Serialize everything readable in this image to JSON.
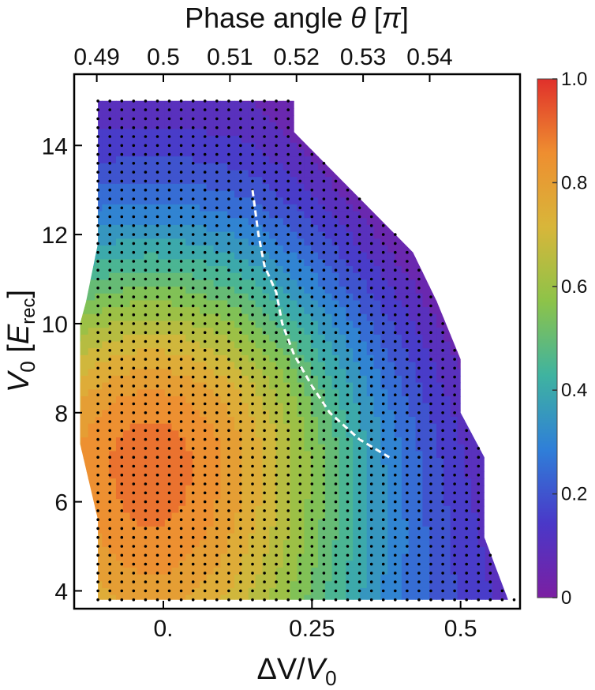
{
  "chart_data": {
    "type": "heatmap",
    "subtype": "filled-contour",
    "title": "",
    "x_bottom_label_parts": [
      "ΔV/",
      "V",
      "0"
    ],
    "x_top_label_parts": [
      "Phase angle ",
      "θ",
      " [",
      "π",
      "]"
    ],
    "y_label_parts": [
      "V",
      "0",
      " [",
      "E",
      "rec",
      "]"
    ],
    "x_ticks": [
      0,
      0.25,
      0.5
    ],
    "x_tick_labels": [
      "0.",
      "0.25",
      "0.5"
    ],
    "x_top_ticks": [
      0.49,
      0.5,
      0.51,
      0.52,
      0.53,
      0.54
    ],
    "x_top_tick_labels": [
      "0.49",
      "0.5",
      "0.51",
      "0.52",
      "0.53",
      "0.54"
    ],
    "y_ticks": [
      4,
      6,
      8,
      10,
      12,
      14
    ],
    "y_tick_labels": [
      "4",
      "6",
      "8",
      "10",
      "12",
      "14"
    ],
    "xlim": [
      -0.15,
      0.6
    ],
    "ylim": [
      3.6,
      15.6
    ],
    "colorbar": {
      "range": [
        0,
        1
      ],
      "ticks": [
        0,
        0.2,
        0.4,
        0.6,
        0.8,
        1.0
      ],
      "tick_labels": [
        "0",
        "0.2",
        "0.4",
        "0.6",
        "0.8",
        "1.0"
      ],
      "colors": [
        "#7b1fa2",
        "#4a38c8",
        "#2f7fd8",
        "#3fb3a0",
        "#8dc349",
        "#d8b63a",
        "#ee8e30",
        "#e0302b"
      ]
    },
    "domain_polygon": [
      [
        -0.11,
        3.8
      ],
      [
        -0.11,
        11.8
      ],
      [
        -0.13,
        10.5
      ],
      [
        -0.14,
        10.0
      ],
      [
        -0.14,
        7.3
      ],
      [
        -0.11,
        5.6
      ],
      [
        -0.11,
        15.0
      ],
      [
        0.22,
        15.0
      ],
      [
        0.22,
        14.3
      ],
      [
        0.42,
        11.6
      ],
      [
        0.46,
        10.5
      ],
      [
        0.5,
        9.2
      ],
      [
        0.5,
        8.0
      ],
      [
        0.54,
        7.0
      ],
      [
        0.54,
        5.2
      ],
      [
        0.58,
        3.8
      ]
    ],
    "value_model": {
      "description": "value peaks near x=0, V0~7 and decreases toward large dV/V0 and high V0",
      "peak_center": [
        -0.02,
        6.9
      ],
      "peak_value": 0.9
    },
    "dashed_line": {
      "style": "white-dashed",
      "points": [
        [
          0.15,
          13.0
        ],
        [
          0.16,
          12.0
        ],
        [
          0.17,
          11.3
        ],
        [
          0.19,
          10.7
        ],
        [
          0.2,
          10.0
        ],
        [
          0.22,
          9.3
        ],
        [
          0.25,
          8.6
        ],
        [
          0.28,
          8.0
        ],
        [
          0.33,
          7.4
        ],
        [
          0.38,
          7.0
        ]
      ]
    },
    "sample_grid": {
      "x_start": -0.11,
      "x_step": 0.02,
      "y_start": 3.8,
      "y_step": 0.2
    }
  }
}
